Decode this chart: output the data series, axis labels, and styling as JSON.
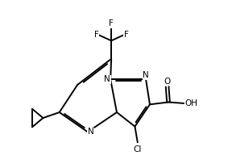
{
  "background_color": "#ffffff",
  "line_color": "#000000",
  "line_width": 1.4,
  "font_size": 7.5,
  "figure_width": 2.88,
  "figure_height": 2.08,
  "dpi": 100,
  "xlim": [
    0,
    10
  ],
  "ylim": [
    0,
    7.2
  ]
}
